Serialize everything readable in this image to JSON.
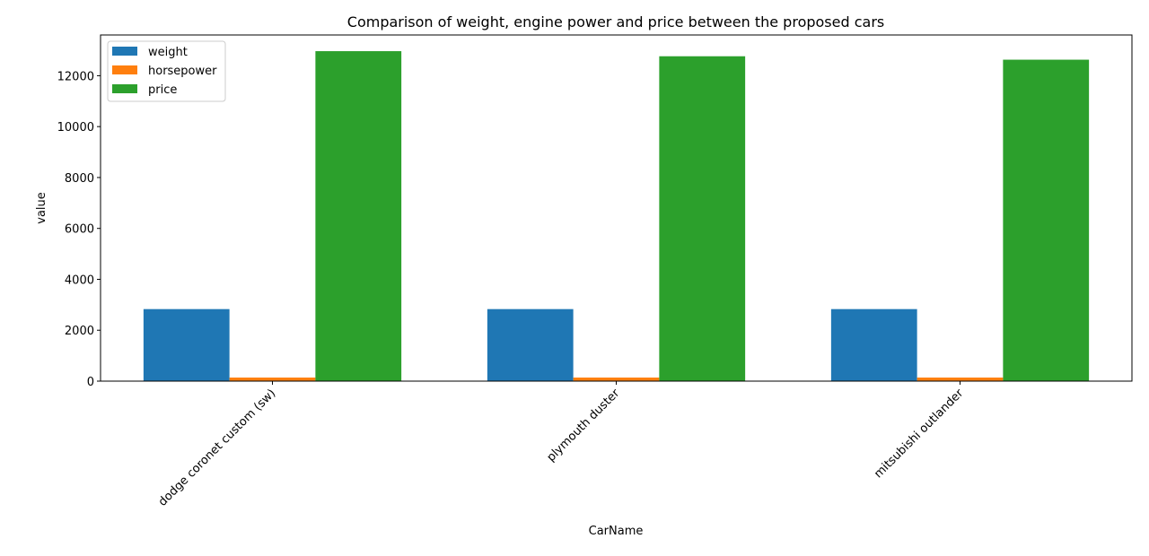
{
  "chart_data": {
    "type": "bar",
    "title": "Comparison of weight, engine power and price between the proposed cars",
    "xlabel": "CarName",
    "ylabel": "value",
    "categories": [
      "dodge coronet custom (sw)",
      "plymouth duster",
      "mitsubishi outlander"
    ],
    "series": [
      {
        "name": "weight",
        "color": "#1f77b4",
        "values": [
          2830,
          2830,
          2830
        ]
      },
      {
        "name": "horsepower",
        "color": "#ff7f0e",
        "values": [
          140,
          140,
          140
        ]
      },
      {
        "name": "price",
        "color": "#2ca02c",
        "values": [
          12964,
          12764,
          12629
        ]
      }
    ],
    "ylim": [
      0,
      13600
    ],
    "yticks": [
      0,
      2000,
      4000,
      6000,
      8000,
      10000,
      12000
    ],
    "legend_position": "top-left",
    "grid": false
  }
}
